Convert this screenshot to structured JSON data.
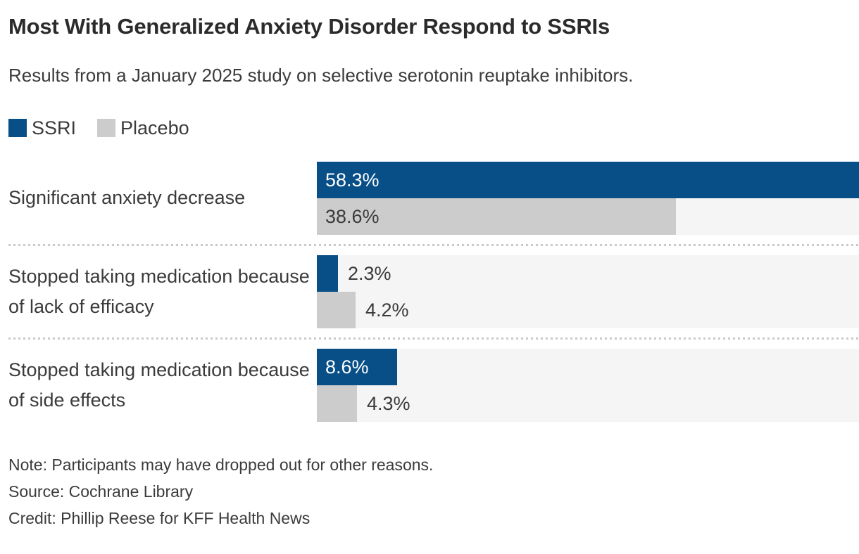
{
  "header": {
    "title": "Most With Generalized Anxiety Disorder Respond to SSRIs",
    "subtitle": "Results from a January 2025 study on selective serotonin reuptake inhibitors."
  },
  "chart_data": {
    "type": "bar",
    "orientation": "horizontal",
    "title": "Most With Generalized Anxiety Disorder Respond to SSRIs",
    "subtitle": "Results from a January 2025 study on selective serotonin reuptake inhibitors.",
    "categories": [
      "Significant anxiety decrease",
      "Stopped taking medication because of lack of efficacy",
      "Stopped taking medication because of side effects"
    ],
    "series": [
      {
        "name": "SSRI",
        "color": "#084e87",
        "values": [
          58.3,
          2.3,
          8.6
        ],
        "labels": [
          "58.3%",
          "2.3%",
          "8.6%"
        ]
      },
      {
        "name": "Placebo",
        "color": "#cccccc",
        "values": [
          38.6,
          4.2,
          4.3
        ],
        "labels": [
          "38.6%",
          "4.2%",
          "4.3%"
        ]
      }
    ],
    "xlim": [
      0,
      58.3
    ],
    "grid": false,
    "legend_position": "top-left",
    "track_color": "#f5f5f5",
    "inside_label_color_ssri": "#ffffff",
    "inside_label_color_placebo": "#3b3b3b",
    "outside_label_color": "#3b3b3b"
  },
  "footer": {
    "note": "Note: Participants may have dropped out for other reasons.",
    "source": "Source: Cochrane Library",
    "credit": "Credit: Phillip Reese for KFF Health News"
  }
}
